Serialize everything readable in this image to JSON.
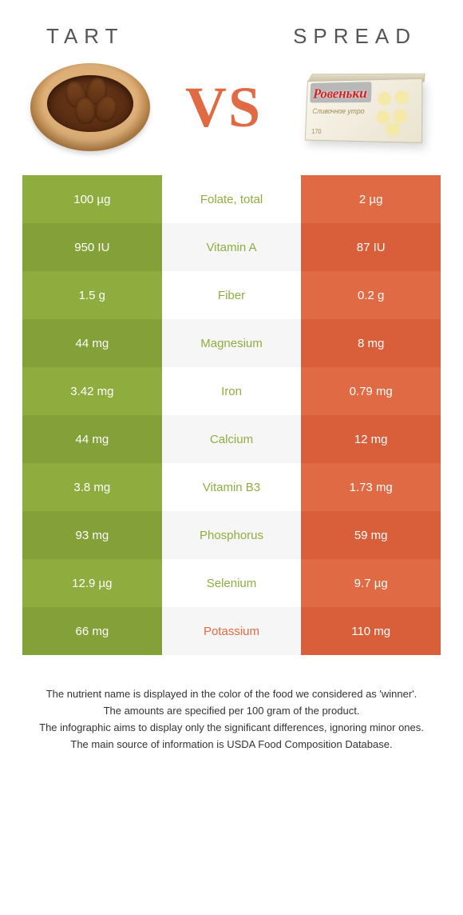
{
  "titles": {
    "left": "TART",
    "right": "SPREAD"
  },
  "vs_label": "VS",
  "brand_text": "Ровеньки",
  "sublabel_text": "Сливочное утро",
  "weight_text": "170",
  "colors": {
    "tart": "#8fad3f",
    "spread": "#e06a44",
    "tart_dark": "#84a038",
    "spread_dark": "#d85f39",
    "mid_even": "#ffffff",
    "mid_odd": "#f6f6f6"
  },
  "rows": [
    {
      "left": "100 µg",
      "mid": "Folate, total",
      "right": "2 µg",
      "winner": "tart"
    },
    {
      "left": "950 IU",
      "mid": "Vitamin A",
      "right": "87 IU",
      "winner": "tart"
    },
    {
      "left": "1.5 g",
      "mid": "Fiber",
      "right": "0.2 g",
      "winner": "tart"
    },
    {
      "left": "44 mg",
      "mid": "Magnesium",
      "right": "8 mg",
      "winner": "tart"
    },
    {
      "left": "3.42 mg",
      "mid": "Iron",
      "right": "0.79 mg",
      "winner": "tart"
    },
    {
      "left": "44 mg",
      "mid": "Calcium",
      "right": "12 mg",
      "winner": "tart"
    },
    {
      "left": "3.8 mg",
      "mid": "Vitamin B3",
      "right": "1.73 mg",
      "winner": "tart"
    },
    {
      "left": "93 mg",
      "mid": "Phosphorus",
      "right": "59 mg",
      "winner": "tart"
    },
    {
      "left": "12.9 µg",
      "mid": "Selenium",
      "right": "9.7 µg",
      "winner": "tart"
    },
    {
      "left": "66 mg",
      "mid": "Potassium",
      "right": "110 mg",
      "winner": "spread"
    }
  ],
  "footer": [
    "The nutrient name is displayed in the color of the food we considered as 'winner'.",
    "The amounts are specified per 100 gram of the product.",
    "The infographic aims to display only the significant differences, ignoring minor ones.",
    "The main source of information is USDA Food Composition Database."
  ]
}
